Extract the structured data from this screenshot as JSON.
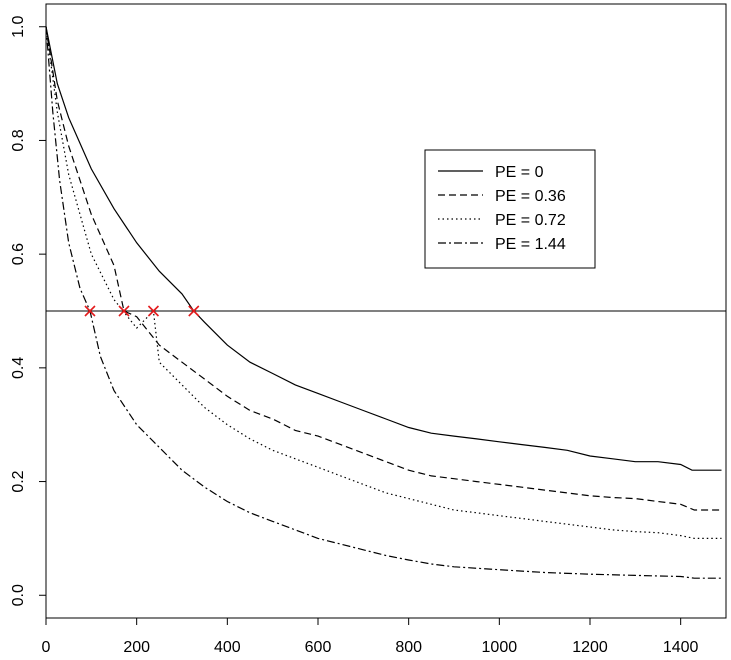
{
  "chart_data": {
    "type": "line",
    "title": "",
    "xlabel": "",
    "ylabel": "",
    "xlim": [
      0,
      1500
    ],
    "ylim": [
      -0.04,
      1.04
    ],
    "x_ticks": [
      "0",
      "200",
      "400",
      "600",
      "800",
      "1000",
      "1200",
      "1400"
    ],
    "y_ticks": [
      "0.0",
      "0.2",
      "0.4",
      "0.6",
      "0.8",
      "1.0"
    ],
    "grid": false,
    "legend_position": "right",
    "reference_line": {
      "y": 0.5,
      "color": "#000000"
    },
    "median_markers": {
      "color": "#e41a1c",
      "points": [
        {
          "x": 97,
          "y": 0.5
        },
        {
          "x": 172,
          "y": 0.5
        },
        {
          "x": 237,
          "y": 0.5
        },
        {
          "x": 326,
          "y": 0.5
        }
      ]
    },
    "series": [
      {
        "name": "PE = 0",
        "dash": "solid",
        "points": [
          [
            0,
            1.0
          ],
          [
            25,
            0.9
          ],
          [
            50,
            0.84
          ],
          [
            100,
            0.75
          ],
          [
            150,
            0.68
          ],
          [
            200,
            0.62
          ],
          [
            250,
            0.57
          ],
          [
            300,
            0.53
          ],
          [
            326,
            0.5
          ],
          [
            350,
            0.48
          ],
          [
            400,
            0.44
          ],
          [
            450,
            0.41
          ],
          [
            500,
            0.39
          ],
          [
            550,
            0.37
          ],
          [
            600,
            0.355
          ],
          [
            650,
            0.34
          ],
          [
            700,
            0.325
          ],
          [
            750,
            0.31
          ],
          [
            800,
            0.295
          ],
          [
            850,
            0.285
          ],
          [
            900,
            0.28
          ],
          [
            950,
            0.275
          ],
          [
            1000,
            0.27
          ],
          [
            1050,
            0.265
          ],
          [
            1100,
            0.26
          ],
          [
            1150,
            0.255
          ],
          [
            1200,
            0.245
          ],
          [
            1250,
            0.24
          ],
          [
            1300,
            0.235
          ],
          [
            1350,
            0.235
          ],
          [
            1400,
            0.23
          ],
          [
            1425,
            0.22
          ],
          [
            1490,
            0.22
          ]
        ]
      },
      {
        "name": "PE = 0.36",
        "dash": "dashed",
        "points": [
          [
            0,
            1.0
          ],
          [
            25,
            0.87
          ],
          [
            50,
            0.79
          ],
          [
            100,
            0.67
          ],
          [
            150,
            0.58
          ],
          [
            172,
            0.5
          ],
          [
            200,
            0.49
          ],
          [
            250,
            0.44
          ],
          [
            300,
            0.41
          ],
          [
            350,
            0.38
          ],
          [
            400,
            0.35
          ],
          [
            450,
            0.325
          ],
          [
            500,
            0.31
          ],
          [
            550,
            0.29
          ],
          [
            600,
            0.28
          ],
          [
            650,
            0.265
          ],
          [
            700,
            0.25
          ],
          [
            750,
            0.235
          ],
          [
            800,
            0.22
          ],
          [
            850,
            0.21
          ],
          [
            900,
            0.205
          ],
          [
            950,
            0.2
          ],
          [
            1000,
            0.195
          ],
          [
            1050,
            0.19
          ],
          [
            1100,
            0.185
          ],
          [
            1150,
            0.18
          ],
          [
            1200,
            0.175
          ],
          [
            1250,
            0.172
          ],
          [
            1300,
            0.17
          ],
          [
            1350,
            0.165
          ],
          [
            1400,
            0.16
          ],
          [
            1430,
            0.15
          ],
          [
            1490,
            0.15
          ]
        ]
      },
      {
        "name": "PE = 0.72",
        "dash": "dotted",
        "points": [
          [
            0,
            1.0
          ],
          [
            25,
            0.85
          ],
          [
            50,
            0.74
          ],
          [
            100,
            0.6
          ],
          [
            150,
            0.52
          ],
          [
            200,
            0.47
          ],
          [
            237,
            0.5
          ],
          [
            250,
            0.41
          ],
          [
            300,
            0.37
          ],
          [
            350,
            0.33
          ],
          [
            400,
            0.3
          ],
          [
            450,
            0.275
          ],
          [
            500,
            0.255
          ],
          [
            550,
            0.24
          ],
          [
            600,
            0.225
          ],
          [
            650,
            0.21
          ],
          [
            700,
            0.195
          ],
          [
            750,
            0.18
          ],
          [
            800,
            0.17
          ],
          [
            850,
            0.16
          ],
          [
            900,
            0.15
          ],
          [
            950,
            0.145
          ],
          [
            1000,
            0.14
          ],
          [
            1050,
            0.135
          ],
          [
            1100,
            0.13
          ],
          [
            1150,
            0.125
          ],
          [
            1200,
            0.12
          ],
          [
            1250,
            0.115
          ],
          [
            1300,
            0.112
          ],
          [
            1350,
            0.11
          ],
          [
            1400,
            0.105
          ],
          [
            1430,
            0.1
          ],
          [
            1490,
            0.1
          ]
        ]
      },
      {
        "name": "PE = 1.44",
        "dash": "dashdot",
        "points": [
          [
            0,
            1.0
          ],
          [
            15,
            0.85
          ],
          [
            30,
            0.73
          ],
          [
            50,
            0.62
          ],
          [
            75,
            0.54
          ],
          [
            97,
            0.5
          ],
          [
            120,
            0.42
          ],
          [
            150,
            0.36
          ],
          [
            200,
            0.3
          ],
          [
            250,
            0.26
          ],
          [
            300,
            0.22
          ],
          [
            350,
            0.19
          ],
          [
            400,
            0.165
          ],
          [
            450,
            0.145
          ],
          [
            500,
            0.13
          ],
          [
            550,
            0.115
          ],
          [
            600,
            0.1
          ],
          [
            650,
            0.09
          ],
          [
            700,
            0.08
          ],
          [
            750,
            0.07
          ],
          [
            800,
            0.062
          ],
          [
            850,
            0.055
          ],
          [
            900,
            0.05
          ],
          [
            1000,
            0.045
          ],
          [
            1100,
            0.04
          ],
          [
            1200,
            0.037
          ],
          [
            1300,
            0.035
          ],
          [
            1400,
            0.033
          ],
          [
            1430,
            0.03
          ],
          [
            1490,
            0.03
          ]
        ]
      }
    ]
  }
}
